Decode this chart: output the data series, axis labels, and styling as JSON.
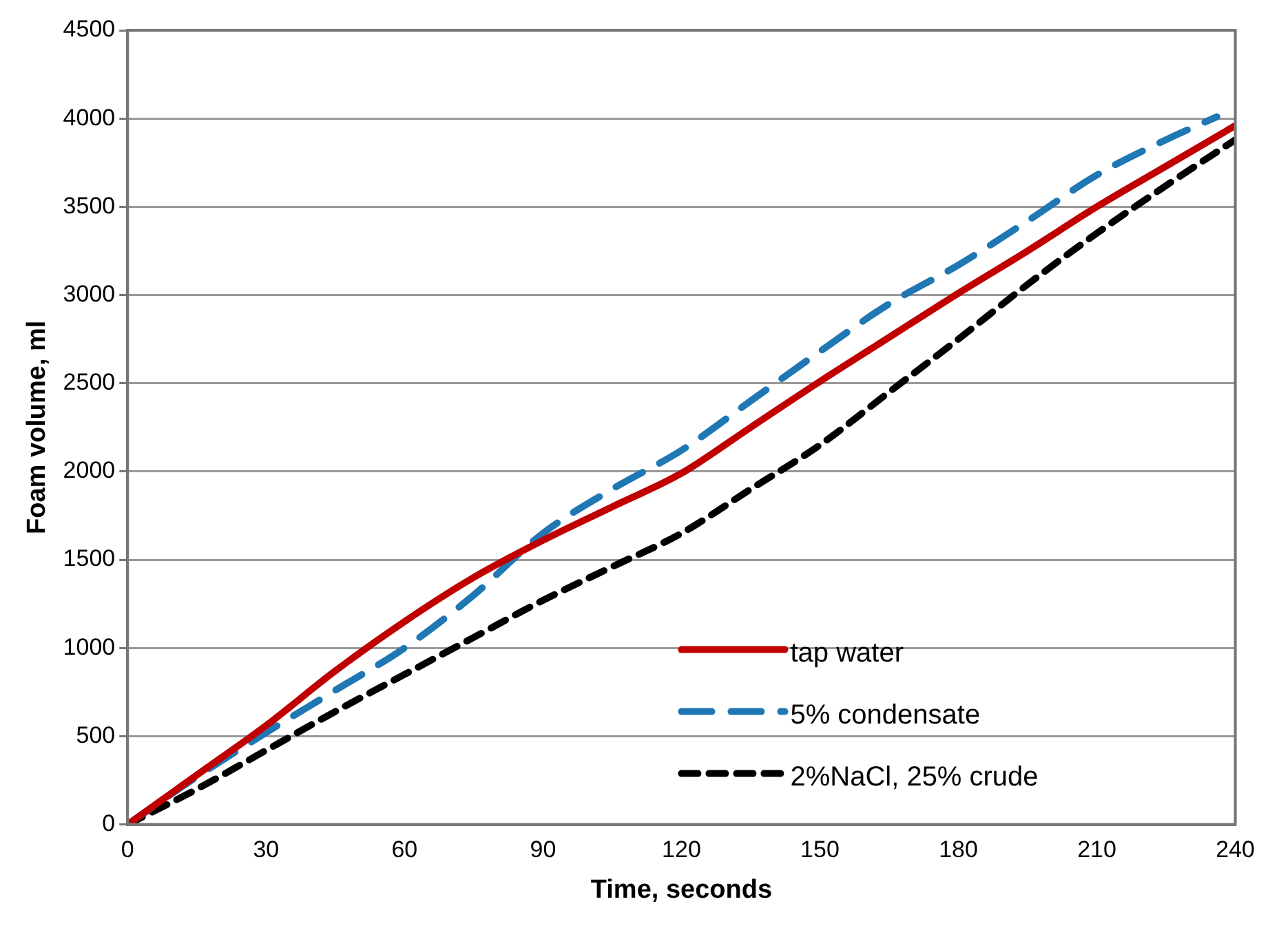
{
  "chart_data": {
    "type": "line",
    "xlabel": "Time, seconds",
    "ylabel": "Foam volume, ml",
    "xlim": [
      0,
      240
    ],
    "xticks": [
      0,
      30,
      60,
      90,
      120,
      150,
      180,
      210,
      240
    ],
    "ylim": [
      0,
      4500
    ],
    "yticks": [
      0,
      500,
      1000,
      1500,
      2000,
      2500,
      3000,
      3500,
      4000,
      4500
    ],
    "grid": "y",
    "legend": "bottom right",
    "marker": "none",
    "series": [
      {
        "name": "tap water",
        "color": "#c00000",
        "line_style": "solid",
        "x": [
          0,
          15,
          30,
          45,
          60,
          75,
          90,
          105,
          120,
          135,
          150,
          165,
          180,
          195,
          210,
          225,
          240
        ],
        "values": [
          0,
          280,
          560,
          870,
          1150,
          1400,
          1610,
          1800,
          1990,
          2250,
          2510,
          2760,
          3010,
          3250,
          3500,
          3730,
          3960
        ]
      },
      {
        "name": "5% condensate",
        "color": "#1f77b4",
        "line_style": "dashed",
        "x": [
          0,
          15,
          30,
          45,
          60,
          75,
          90,
          105,
          120,
          135,
          150,
          165,
          180,
          195,
          210,
          225,
          236
        ],
        "values": [
          0,
          270,
          520,
          760,
          1000,
          1300,
          1650,
          1900,
          2120,
          2400,
          2680,
          2950,
          3170,
          3420,
          3680,
          3880,
          4010
        ]
      },
      {
        "name": "2%NaCl, 25% crude",
        "color": "#000000",
        "line_style": "dashed",
        "x": [
          0,
          15,
          30,
          45,
          60,
          75,
          90,
          105,
          120,
          135,
          150,
          165,
          180,
          195,
          210,
          225,
          240
        ],
        "values": [
          0,
          200,
          420,
          640,
          850,
          1060,
          1270,
          1460,
          1650,
          1900,
          2150,
          2450,
          2750,
          3060,
          3350,
          3620,
          3880
        ]
      }
    ]
  }
}
